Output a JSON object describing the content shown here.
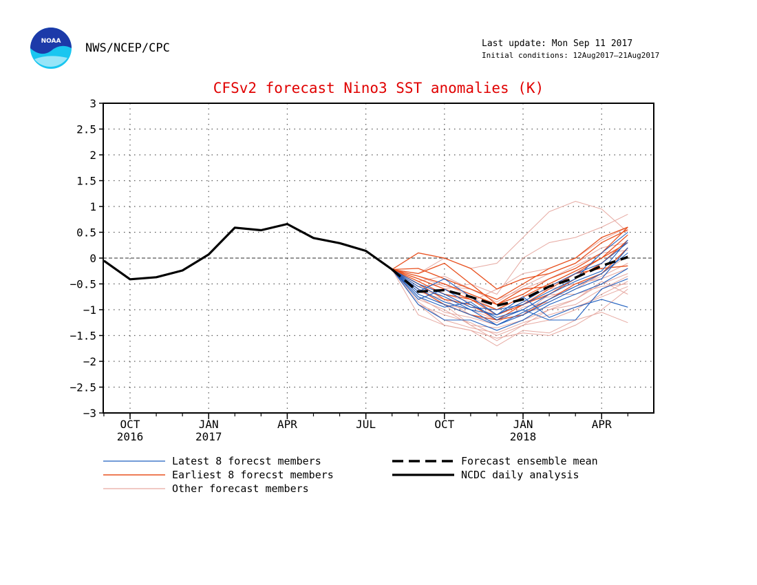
{
  "header": {
    "agency": "NWS/NCEP/CPC",
    "logo_text": "NOAA",
    "last_update": "Last update: Mon Sep 11 2017",
    "initial_conditions": "Initial conditions: 12Aug2017–21Aug2017"
  },
  "colors": {
    "title": "#e00000",
    "latest": "#1f5fbf",
    "earliest": "#e8501e",
    "other": "#e6a8a0",
    "analysis": "#000000",
    "mean": "#000000"
  },
  "chart_data": {
    "type": "line",
    "title": "CFSv2 forecast Nino3 SST anomalies (K)",
    "xlabel": "",
    "ylabel": "",
    "ylim": [
      -3,
      3
    ],
    "yticks": [
      3,
      2.5,
      2,
      1.5,
      1,
      0.5,
      0,
      -0.5,
      -1,
      -1.5,
      -2,
      -2.5,
      -3
    ],
    "ytick_labels": [
      "3",
      "2.5",
      "2",
      "1.5",
      "1",
      "0.5",
      "0",
      "−0.5",
      "−1",
      "−1.5",
      "−2",
      "−2.5",
      "−3"
    ],
    "x_months": [
      "2016-09",
      "2016-10",
      "2016-11",
      "2016-12",
      "2017-01",
      "2017-02",
      "2017-03",
      "2017-04",
      "2017-05",
      "2017-06",
      "2017-07",
      "2017-08",
      "2017-09",
      "2017-10",
      "2017-11",
      "2017-12",
      "2018-01",
      "2018-02",
      "2018-03",
      "2018-04",
      "2018-05"
    ],
    "xtick_labels": [
      {
        "month": "2016-10",
        "line1": "OCT",
        "line2": "2016"
      },
      {
        "month": "2017-01",
        "line1": "JAN",
        "line2": "2017"
      },
      {
        "month": "2017-04",
        "line1": "APR",
        "line2": ""
      },
      {
        "month": "2017-07",
        "line1": "JUL",
        "line2": ""
      },
      {
        "month": "2017-10",
        "line1": "OCT",
        "line2": ""
      },
      {
        "month": "2018-01",
        "line1": "JAN",
        "line2": "2018"
      },
      {
        "month": "2018-04",
        "line1": "APR",
        "line2": ""
      }
    ],
    "grid": true,
    "zero_line": true,
    "legend": {
      "placement": "bottom",
      "entries": [
        {
          "key": "latest",
          "label": "Latest 8 forecst members",
          "style": "thin-blue"
        },
        {
          "key": "earliest",
          "label": "Earliest 8 forecst members",
          "style": "thin-orange"
        },
        {
          "key": "other",
          "label": "Other forecast members",
          "style": "thin-pink"
        },
        {
          "key": "mean",
          "label": "Forecast ensemble mean",
          "style": "thick-dashed"
        },
        {
          "key": "analysis",
          "label": "NCDC daily analysis",
          "style": "thick-solid"
        }
      ]
    },
    "analysis": {
      "x": [
        "2016-09",
        "2016-10",
        "2016-11",
        "2016-12",
        "2017-01",
        "2017-02",
        "2017-03",
        "2017-04",
        "2017-05",
        "2017-06",
        "2017-07",
        "2017-08"
      ],
      "values": [
        -0.05,
        -0.41,
        -0.37,
        -0.24,
        0.07,
        0.59,
        0.54,
        0.66,
        0.39,
        0.29,
        0.14,
        -0.22
      ]
    },
    "ensemble_mean": {
      "x": [
        "2017-08",
        "2017-09",
        "2017-10",
        "2017-11",
        "2017-12",
        "2018-01",
        "2018-02",
        "2018-03",
        "2018-04",
        "2018-05"
      ],
      "values": [
        -0.22,
        -0.65,
        -0.62,
        -0.75,
        -0.92,
        -0.8,
        -0.55,
        -0.38,
        -0.15,
        0.02
      ]
    },
    "forecast_x": [
      "2017-08",
      "2017-09",
      "2017-10",
      "2017-11",
      "2017-12",
      "2018-01",
      "2018-02",
      "2018-03",
      "2018-04",
      "2018-05"
    ],
    "latest_members": [
      [
        -0.22,
        -0.55,
        -0.75,
        -1.0,
        -1.3,
        -1.05,
        -0.8,
        -0.55,
        -0.3,
        0.1
      ],
      [
        -0.22,
        -0.7,
        -0.9,
        -1.1,
        -1.3,
        -1.1,
        -0.85,
        -0.6,
        -0.4,
        0.2
      ],
      [
        -0.22,
        -0.8,
        -0.6,
        -0.9,
        -1.15,
        -1.0,
        -0.7,
        -0.45,
        -0.25,
        0.35
      ],
      [
        -0.22,
        -0.65,
        -0.4,
        -0.75,
        -1.1,
        -0.85,
        -0.55,
        -0.3,
        -0.1,
        0.3
      ],
      [
        -0.22,
        -0.9,
        -1.2,
        -1.2,
        -1.4,
        -1.2,
        -0.9,
        -0.7,
        -0.5,
        -0.2
      ],
      [
        -0.22,
        -0.6,
        -0.85,
        -1.0,
        -1.1,
        -0.75,
        -1.15,
        -0.95,
        -0.8,
        -0.95
      ],
      [
        -0.22,
        -0.75,
        -0.95,
        -0.85,
        -1.2,
        -1.0,
        -1.2,
        -1.2,
        -0.6,
        -0.4
      ],
      [
        -0.22,
        -0.5,
        -0.7,
        -0.95,
        -1.0,
        -0.9,
        -0.65,
        -0.4,
        0.1,
        0.5
      ]
    ],
    "earliest_members": [
      [
        -0.22,
        0.1,
        0.0,
        -0.2,
        -0.6,
        -0.4,
        -0.3,
        -0.1,
        0.3,
        0.55
      ],
      [
        -0.22,
        -0.3,
        -0.1,
        -0.5,
        -0.9,
        -0.7,
        -0.4,
        -0.2,
        0.1,
        0.6
      ],
      [
        -0.22,
        -0.4,
        -0.6,
        -0.8,
        -1.1,
        -0.9,
        -0.6,
        -0.3,
        0.0,
        0.3
      ],
      [
        -0.22,
        -0.5,
        -0.8,
        -0.9,
        -1.2,
        -1.1,
        -0.8,
        -0.5,
        -0.3,
        0.2
      ],
      [
        -0.22,
        -0.2,
        -0.4,
        -0.6,
        -0.8,
        -0.5,
        -0.2,
        0.0,
        0.4,
        0.6
      ],
      [
        -0.22,
        -0.6,
        -0.9,
        -1.1,
        -1.2,
        -0.9,
        -0.7,
        -0.4,
        -0.1,
        0.35
      ],
      [
        -0.22,
        -0.35,
        -0.5,
        -0.7,
        -0.9,
        -0.6,
        -0.55,
        -0.3,
        -0.2,
        -0.15
      ],
      [
        -0.22,
        -0.45,
        -0.7,
        -0.8,
        -1.0,
        -0.75,
        -0.5,
        -0.25,
        0.0,
        0.45
      ]
    ],
    "other_members": [
      [
        -0.22,
        -0.9,
        -1.3,
        -1.4,
        -1.7,
        -1.4,
        -1.45,
        -1.2,
        -1.05,
        -1.25
      ],
      [
        -0.22,
        -1.1,
        -1.3,
        -1.4,
        -1.55,
        -1.45,
        -1.5,
        -1.3,
        -1.0,
        -0.6
      ],
      [
        -0.22,
        -0.3,
        0.0,
        -0.2,
        -0.1,
        0.4,
        0.9,
        1.1,
        0.95,
        0.5
      ],
      [
        -0.22,
        -0.6,
        -0.9,
        -1.3,
        -1.6,
        -1.3,
        -1.0,
        -0.8,
        -0.45,
        -0.7
      ],
      [
        -0.22,
        -0.4,
        -0.6,
        -0.5,
        -0.7,
        0.0,
        0.3,
        0.4,
        0.6,
        0.85
      ],
      [
        -0.22,
        -0.7,
        -0.9,
        -1.0,
        -1.2,
        -1.1,
        -0.7,
        -0.7,
        -0.55,
        -0.5
      ],
      [
        -0.22,
        -0.5,
        -0.7,
        -0.85,
        -0.6,
        -0.3,
        -0.2,
        0.0,
        0.35,
        0.6
      ],
      [
        -0.22,
        -0.8,
        -1.0,
        -1.3,
        -1.35,
        -1.2,
        -1.0,
        -0.9,
        -0.6,
        -0.35
      ],
      [
        -0.22,
        -0.35,
        -0.55,
        -0.6,
        -0.85,
        -0.55,
        -0.3,
        -0.1,
        0.2,
        0.3
      ],
      [
        -0.22,
        -0.9,
        -1.1,
        -1.25,
        -1.5,
        -1.3,
        -1.2,
        -1.0,
        -0.7,
        -0.45
      ],
      [
        -0.22,
        -0.55,
        -0.5,
        -0.75,
        -1.0,
        -0.75,
        -0.6,
        -0.5,
        -0.4,
        -0.2
      ],
      [
        -0.22,
        -0.65,
        -0.8,
        -1.1,
        -1.25,
        -0.95,
        -0.85,
        -0.6,
        -0.3,
        0.05
      ],
      [
        -0.22,
        -0.45,
        -0.35,
        -0.6,
        -0.8,
        -0.6,
        -0.4,
        -0.15,
        0.1,
        0.15
      ],
      [
        -0.22,
        -0.75,
        -1.05,
        -1.15,
        -1.3,
        -1.05,
        -0.95,
        -0.8,
        -0.5,
        -0.3
      ],
      [
        -0.22,
        -0.6,
        -0.75,
        -0.95,
        -1.1,
        -0.85,
        -0.75,
        -0.55,
        -0.35,
        -0.1
      ],
      [
        -0.22,
        -0.85,
        -1.2,
        -1.35,
        -1.45,
        -1.25,
        -1.1,
        -0.95,
        -0.75,
        -0.55
      ]
    ]
  }
}
